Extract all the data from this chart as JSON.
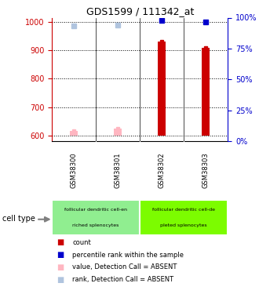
{
  "title": "GDS1599 / 111342_at",
  "samples": [
    "GSM38300",
    "GSM38301",
    "GSM38302",
    "GSM38303"
  ],
  "ylim_left": [
    580,
    1015
  ],
  "ylim_right": [
    0,
    100
  ],
  "yticks_left": [
    600,
    700,
    800,
    900,
    1000
  ],
  "yticks_right": [
    0,
    25,
    50,
    75,
    100
  ],
  "bar_values": [
    617,
    625,
    931,
    910
  ],
  "bar_base": 600,
  "dot_blue_values": [
    93.5,
    94,
    97.5,
    96.5
  ],
  "dot_blue_absent": [
    true,
    true,
    false,
    false
  ],
  "bar_absent": [
    true,
    true,
    false,
    false
  ],
  "group_labels": [
    "follicular dendritic cell-en\nriched splenocytes",
    "follicular dendritic cell-de\npleted splenocytes"
  ],
  "group_colors": [
    "#90EE90",
    "#7CFC00"
  ],
  "group_ranges": [
    [
      0,
      2
    ],
    [
      2,
      4
    ]
  ],
  "bar_color_present": "#CC0000",
  "bar_color_absent": "#FFB6C1",
  "dot_blue_color_present": "#0000CC",
  "dot_blue_color_absent": "#B0C4DE",
  "bg_color": "#FFFFFF",
  "plot_bg": "#FFFFFF",
  "grid_color": "#000000",
  "left_axis_color": "#CC0000",
  "right_axis_color": "#0000CC",
  "sample_bg_color": "#C8C8C8",
  "cell_type_label": "cell type",
  "legend_items": [
    [
      "#CC0000",
      "count"
    ],
    [
      "#0000CC",
      "percentile rank within the sample"
    ],
    [
      "#FFB6C1",
      "value, Detection Call = ABSENT"
    ],
    [
      "#B0C4DE",
      "rank, Detection Call = ABSENT"
    ]
  ]
}
